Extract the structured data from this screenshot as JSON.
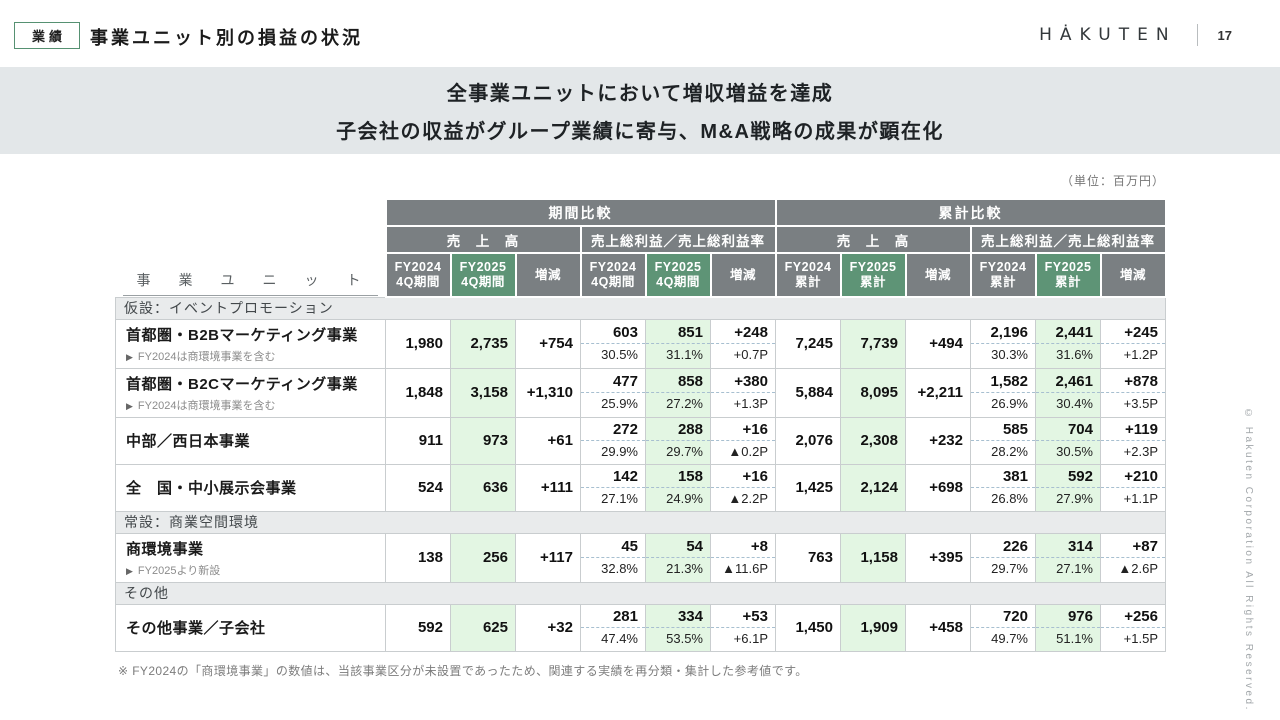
{
  "page": {
    "badge": "業績",
    "title": "事業ユニット別の損益の状況",
    "logo": "HȦKUTEN",
    "page_number": "17",
    "banner_line1": "全事業ユニットにおいて増収増益を達成",
    "banner_line2": "子会社の収益がグループ業績に寄与、M&A戦略の成果が顕在化",
    "unit_note": "（単位：百万円）",
    "footnote": "※ FY2024の「商環境事業」の数値は、当該事業区分が未設置であったため、関連する実績を再分類・集計した参考値です。",
    "copyright": "© Hakuten Corporation All Rights Reserved.",
    "colors": {
      "accent_green": "#5e9476",
      "light_green": "#e3f6e3",
      "header_gray": "#7a7f82"
    }
  },
  "table": {
    "row_header_label": "事　業　ユ　ニ　ッ　ト",
    "header": {
      "group_period": "期間比較",
      "group_cumulative": "累計比較",
      "sub_sales": "売　上　高",
      "sub_profit": "売上総利益／売上総利益率",
      "columns_period": [
        {
          "top": "FY2024",
          "bottom": "4Q期間",
          "green": false
        },
        {
          "top": "FY2025",
          "bottom": "4Q期間",
          "green": true
        },
        {
          "top": "増減",
          "bottom": "",
          "green": false
        }
      ],
      "columns_cumulative": [
        {
          "top": "FY2024",
          "bottom": "累計",
          "green": false
        },
        {
          "top": "FY2025",
          "bottom": "累計",
          "green": true
        },
        {
          "top": "増減",
          "bottom": "",
          "green": false
        }
      ]
    },
    "sections": [
      {
        "label": "仮設：イベントプロモーション",
        "rows": [
          {
            "name": "首都圏・B2Bマーケティング事業",
            "note": "FY2024は商環境事業を含む",
            "period": {
              "sales": [
                "1,980",
                "2,735",
                "+754"
              ],
              "profit": [
                [
                  "603",
                  "30.5%"
                ],
                [
                  "851",
                  "31.1%"
                ],
                [
                  "+248",
                  "+0.7P"
                ]
              ]
            },
            "cumulative": {
              "sales": [
                "7,245",
                "7,739",
                "+494"
              ],
              "profit": [
                [
                  "2,196",
                  "30.3%"
                ],
                [
                  "2,441",
                  "31.6%"
                ],
                [
                  "+245",
                  "+1.2P"
                ]
              ]
            }
          },
          {
            "name": "首都圏・B2Cマーケティング事業",
            "note": "FY2024は商環境事業を含む",
            "period": {
              "sales": [
                "1,848",
                "3,158",
                "+1,310"
              ],
              "profit": [
                [
                  "477",
                  "25.9%"
                ],
                [
                  "858",
                  "27.2%"
                ],
                [
                  "+380",
                  "+1.3P"
                ]
              ]
            },
            "cumulative": {
              "sales": [
                "5,884",
                "8,095",
                "+2,211"
              ],
              "profit": [
                [
                  "1,582",
                  "26.9%"
                ],
                [
                  "2,461",
                  "30.4%"
                ],
                [
                  "+878",
                  "+3.5P"
                ]
              ]
            }
          },
          {
            "name": "中部／西日本事業",
            "note": "",
            "period": {
              "sales": [
                "911",
                "973",
                "+61"
              ],
              "profit": [
                [
                  "272",
                  "29.9%"
                ],
                [
                  "288",
                  "29.7%"
                ],
                [
                  "+16",
                  "▲0.2P"
                ]
              ]
            },
            "cumulative": {
              "sales": [
                "2,076",
                "2,308",
                "+232"
              ],
              "profit": [
                [
                  "585",
                  "28.2%"
                ],
                [
                  "704",
                  "30.5%"
                ],
                [
                  "+119",
                  "+2.3P"
                ]
              ]
            }
          },
          {
            "name": "全　国・中小展示会事業",
            "note": "",
            "period": {
              "sales": [
                "524",
                "636",
                "+111"
              ],
              "profit": [
                [
                  "142",
                  "27.1%"
                ],
                [
                  "158",
                  "24.9%"
                ],
                [
                  "+16",
                  "▲2.2P"
                ]
              ]
            },
            "cumulative": {
              "sales": [
                "1,425",
                "2,124",
                "+698"
              ],
              "profit": [
                [
                  "381",
                  "26.8%"
                ],
                [
                  "592",
                  "27.9%"
                ],
                [
                  "+210",
                  "+1.1P"
                ]
              ]
            }
          }
        ]
      },
      {
        "label": "常設：商業空間環境",
        "rows": [
          {
            "name": "商環境事業",
            "note": "FY2025より新設",
            "period": {
              "sales": [
                "138",
                "256",
                "+117"
              ],
              "profit": [
                [
                  "45",
                  "32.8%"
                ],
                [
                  "54",
                  "21.3%"
                ],
                [
                  "+8",
                  "▲11.6P"
                ]
              ]
            },
            "cumulative": {
              "sales": [
                "763",
                "1,158",
                "+395"
              ],
              "profit": [
                [
                  "226",
                  "29.7%"
                ],
                [
                  "314",
                  "27.1%"
                ],
                [
                  "+87",
                  "▲2.6P"
                ]
              ]
            }
          }
        ]
      },
      {
        "label": "その他",
        "rows": [
          {
            "name": "その他事業／子会社",
            "note": "",
            "period": {
              "sales": [
                "592",
                "625",
                "+32"
              ],
              "profit": [
                [
                  "281",
                  "47.4%"
                ],
                [
                  "334",
                  "53.5%"
                ],
                [
                  "+53",
                  "+6.1P"
                ]
              ]
            },
            "cumulative": {
              "sales": [
                "1,450",
                "1,909",
                "+458"
              ],
              "profit": [
                [
                  "720",
                  "49.7%"
                ],
                [
                  "976",
                  "51.1%"
                ],
                [
                  "+256",
                  "+1.5P"
                ]
              ]
            }
          }
        ]
      }
    ]
  }
}
